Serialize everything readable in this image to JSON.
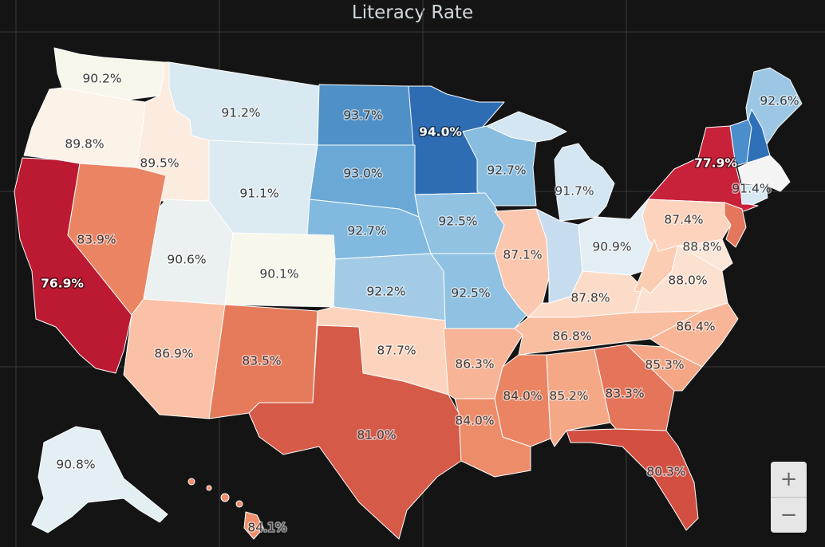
{
  "title": "Literacy Rate",
  "zoom": {
    "in_label": "+",
    "out_label": "−"
  },
  "colors": {
    "background": "#141414",
    "grid": "#3a3a3a",
    "border": "#ffffff"
  },
  "states": [
    {
      "id": "WA",
      "value": "90.2%",
      "color": "#f6f6ea"
    },
    {
      "id": "OR",
      "value": "89.8%",
      "color": "#fbf2e8"
    },
    {
      "id": "ID",
      "value": "89.5%",
      "color": "#fcebdf"
    },
    {
      "id": "MT",
      "value": "91.2%",
      "color": "#d9e9f1"
    },
    {
      "id": "ND",
      "value": "93.7%",
      "color": "#4f90c6"
    },
    {
      "id": "MN",
      "value": "94.0%",
      "color": "#2e6db3"
    },
    {
      "id": "WI",
      "value": "92.7%",
      "color": "#88bde0"
    },
    {
      "id": "MI",
      "value": "91.7%",
      "color": "#d4e6f1"
    },
    {
      "id": "ME",
      "value": "92.6%",
      "color": "#9cc7e4"
    },
    {
      "id": "VT",
      "value": "",
      "color": "#4b8ecc"
    },
    {
      "id": "NH",
      "value": "",
      "color": "#2e70b8"
    },
    {
      "id": "NY",
      "value": "77.9%",
      "color": "#c7223a"
    },
    {
      "id": "MA",
      "value": "91.4%",
      "color": "#f4f4f4"
    },
    {
      "id": "CT",
      "value": "",
      "color": "#d6e8f2"
    },
    {
      "id": "NJ",
      "value": "",
      "color": "#e3765b"
    },
    {
      "id": "CA",
      "value": "76.9%",
      "color": "#bb1a32"
    },
    {
      "id": "NV",
      "value": "83.9%",
      "color": "#eb8463"
    },
    {
      "id": "UT",
      "value": "90.6%",
      "color": "#ebf1f0"
    },
    {
      "id": "WY",
      "value": "91.1%",
      "color": "#dceaf2"
    },
    {
      "id": "SD",
      "value": "93.0%",
      "color": "#6aa8d6"
    },
    {
      "id": "NE",
      "value": "92.7%",
      "color": "#82badf"
    },
    {
      "id": "IA",
      "value": "92.5%",
      "color": "#91c2e2"
    },
    {
      "id": "IL",
      "value": "87.1%",
      "color": "#fbc8af"
    },
    {
      "id": "IN",
      "value": "",
      "color": "#c7ddef"
    },
    {
      "id": "OH",
      "value": "90.9%",
      "color": "#e2eef4"
    },
    {
      "id": "PA",
      "value": "87.4%",
      "color": "#fdd3bd"
    },
    {
      "id": "CO",
      "value": "90.1%",
      "color": "#f7f7ec"
    },
    {
      "id": "KS",
      "value": "92.2%",
      "color": "#a4cbe5"
    },
    {
      "id": "MO",
      "value": "92.5%",
      "color": "#8fc1e2"
    },
    {
      "id": "KY",
      "value": "87.8%",
      "color": "#fcdcc8"
    },
    {
      "id": "WV",
      "value": "",
      "color": "#fbceb4"
    },
    {
      "id": "VA",
      "value": "88.0%",
      "color": "#fde1d0"
    },
    {
      "id": "MD",
      "value": "88.8%",
      "color": "#fce6d8"
    },
    {
      "id": "AZ",
      "value": "86.9%",
      "color": "#fac1a6"
    },
    {
      "id": "NM",
      "value": "83.5%",
      "color": "#e67b5b"
    },
    {
      "id": "OK",
      "value": "87.7%",
      "color": "#fcd4be"
    },
    {
      "id": "AR",
      "value": "86.3%",
      "color": "#f7b496"
    },
    {
      "id": "TN",
      "value": "86.8%",
      "color": "#f9bd9f"
    },
    {
      "id": "NC",
      "value": "86.4%",
      "color": "#f8b597"
    },
    {
      "id": "TX",
      "value": "81.0%",
      "color": "#d55a47"
    },
    {
      "id": "LA",
      "value": "84.0%",
      "color": "#ed8c69"
    },
    {
      "id": "MS",
      "value": "84.0%",
      "color": "#ea8463"
    },
    {
      "id": "AL",
      "value": "85.2%",
      "color": "#f5a886"
    },
    {
      "id": "GA",
      "value": "83.3%",
      "color": "#e4745a"
    },
    {
      "id": "SC",
      "value": "85.3%",
      "color": "#f4a685"
    },
    {
      "id": "FL",
      "value": "80.3%",
      "color": "#d34f42"
    },
    {
      "id": "AK",
      "value": "90.8%",
      "color": "#e4eff3"
    },
    {
      "id": "HI",
      "value": "84.1%",
      "color": "#ee8e6c"
    }
  ]
}
